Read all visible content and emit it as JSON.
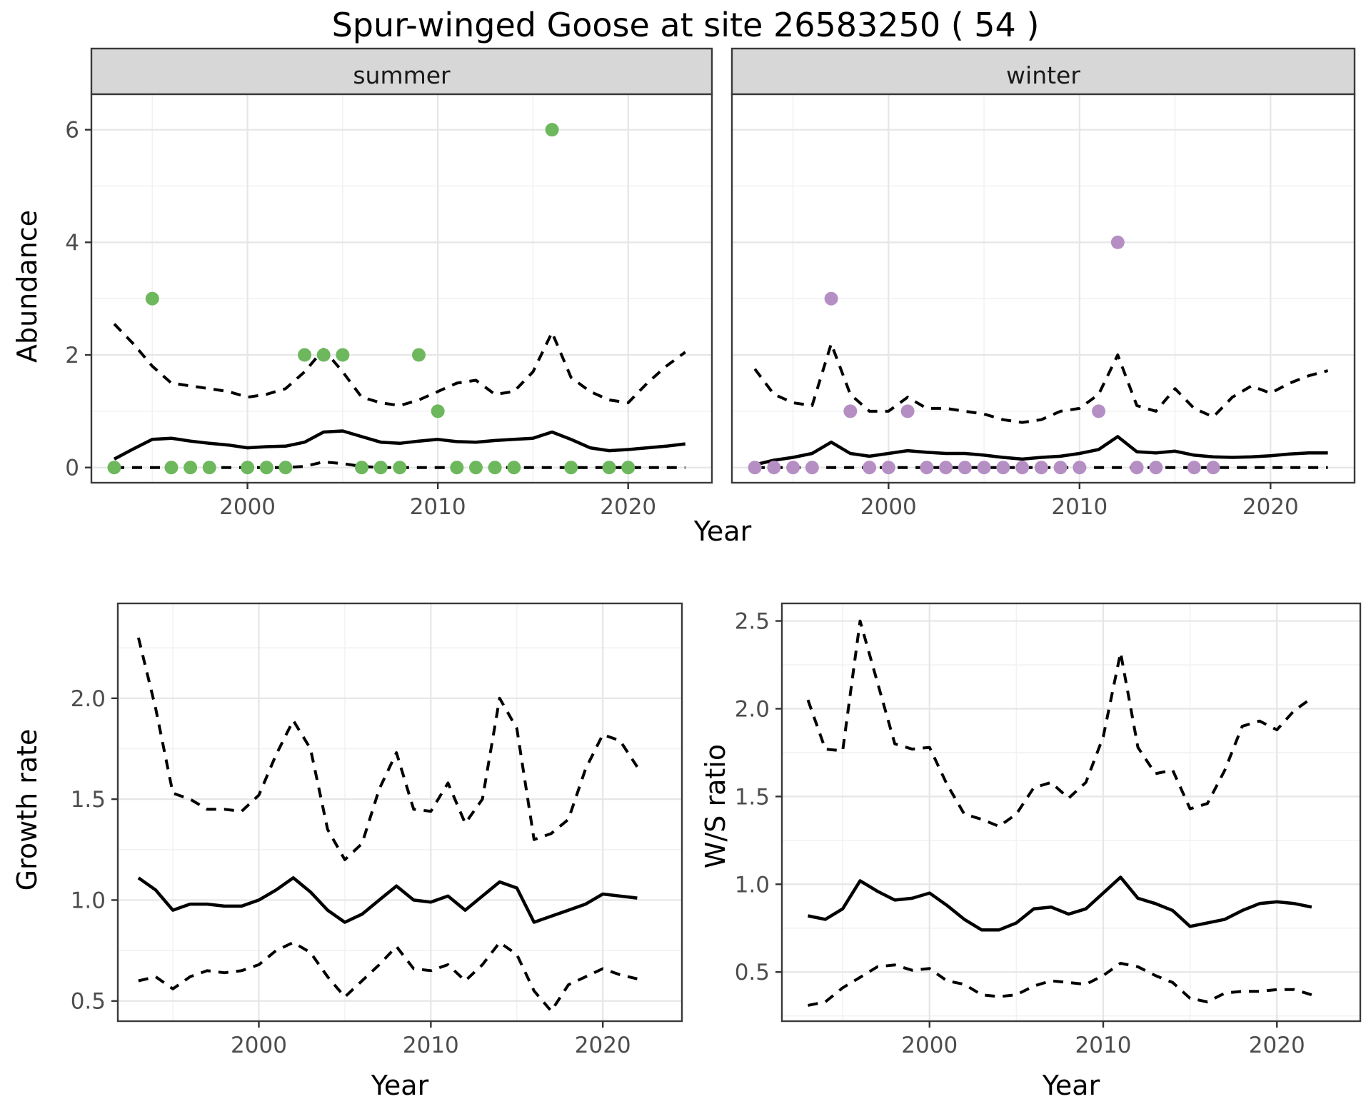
{
  "title": "Spur-winged Goose at site 26583250 ( 54 )",
  "colors": {
    "summer_point": "#6db75c",
    "winter_point": "#b58fc4",
    "line": "#000000",
    "grid_major": "#e6e6e6",
    "grid_minor": "#f2f2f2",
    "strip_bg": "#d7d7d7",
    "border": "#3a3a3a",
    "tick_text": "#4d4d4d"
  },
  "chart_data": {
    "abundance": {
      "type": "scatter+line",
      "ylabel": "Abundance",
      "xlabel": "Year",
      "ylim": [
        -0.27,
        6.63
      ],
      "xlim": [
        1991.8,
        2024.4
      ],
      "ytick_values": [
        0,
        2,
        4,
        6
      ],
      "ytick_labels": [
        "0",
        "2",
        "4",
        "6"
      ],
      "yminor_values": [
        1,
        3,
        5
      ],
      "xtick_values": [
        2000,
        2010,
        2020
      ],
      "xtick_labels": [
        "2000",
        "2010",
        "2020"
      ],
      "xminor_values": [
        1995,
        2005,
        2015
      ],
      "years": [
        1993,
        1994,
        1995,
        1996,
        1997,
        1998,
        1999,
        2000,
        2001,
        2002,
        2003,
        2004,
        2005,
        2006,
        2007,
        2008,
        2009,
        2010,
        2011,
        2012,
        2013,
        2014,
        2015,
        2016,
        2017,
        2018,
        2019,
        2020,
        2021,
        2022,
        2023
      ],
      "facets": [
        {
          "label": "summer",
          "point_color": "summer_point",
          "points": [
            [
              1993,
              0
            ],
            [
              1995,
              3
            ],
            [
              1996,
              0
            ],
            [
              1997,
              0
            ],
            [
              1998,
              0
            ],
            [
              2000,
              0
            ],
            [
              2001,
              0
            ],
            [
              2002,
              0
            ],
            [
              2003,
              2
            ],
            [
              2004,
              2
            ],
            [
              2005,
              2
            ],
            [
              2006,
              0
            ],
            [
              2007,
              0
            ],
            [
              2008,
              0
            ],
            [
              2009,
              2
            ],
            [
              2010,
              1
            ],
            [
              2011,
              0
            ],
            [
              2012,
              0
            ],
            [
              2013,
              0
            ],
            [
              2014,
              0
            ],
            [
              2016,
              6
            ],
            [
              2017,
              0
            ],
            [
              2019,
              0
            ],
            [
              2020,
              0
            ]
          ],
          "fit": [
            0.15,
            0.33,
            0.5,
            0.52,
            0.47,
            0.43,
            0.4,
            0.35,
            0.37,
            0.38,
            0.45,
            0.63,
            0.65,
            0.55,
            0.45,
            0.43,
            0.47,
            0.5,
            0.46,
            0.45,
            0.48,
            0.5,
            0.52,
            0.63,
            0.5,
            0.35,
            0.3,
            0.32,
            0.35,
            0.38,
            0.42
          ],
          "upper": [
            2.55,
            2.2,
            1.8,
            1.5,
            1.45,
            1.4,
            1.35,
            1.25,
            1.3,
            1.4,
            1.7,
            2.1,
            1.7,
            1.25,
            1.15,
            1.1,
            1.2,
            1.35,
            1.5,
            1.55,
            1.3,
            1.35,
            1.7,
            2.4,
            1.6,
            1.35,
            1.2,
            1.15,
            1.5,
            1.8,
            2.05
          ],
          "lower": [
            0,
            0,
            0,
            0,
            0,
            0,
            0,
            0,
            0,
            0,
            0.02,
            0.1,
            0.07,
            0.02,
            0,
            0,
            0,
            0,
            0,
            0,
            0,
            0,
            0,
            0,
            0,
            0,
            0,
            0,
            0,
            0,
            0
          ]
        },
        {
          "label": "winter",
          "point_color": "winter_point",
          "points": [
            [
              1993,
              0
            ],
            [
              1994,
              0
            ],
            [
              1995,
              0
            ],
            [
              1996,
              0
            ],
            [
              1997,
              3
            ],
            [
              1998,
              1
            ],
            [
              1999,
              0
            ],
            [
              2000,
              0
            ],
            [
              2001,
              1
            ],
            [
              2002,
              0
            ],
            [
              2003,
              0
            ],
            [
              2004,
              0
            ],
            [
              2005,
              0
            ],
            [
              2006,
              0
            ],
            [
              2007,
              0
            ],
            [
              2008,
              0
            ],
            [
              2009,
              0
            ],
            [
              2010,
              0
            ],
            [
              2011,
              1
            ],
            [
              2012,
              4
            ],
            [
              2013,
              0
            ],
            [
              2014,
              0
            ],
            [
              2016,
              0
            ],
            [
              2017,
              0
            ]
          ],
          "fit": [
            0.05,
            0.13,
            0.18,
            0.25,
            0.45,
            0.25,
            0.2,
            0.25,
            0.3,
            0.27,
            0.25,
            0.25,
            0.22,
            0.18,
            0.15,
            0.18,
            0.2,
            0.25,
            0.32,
            0.55,
            0.28,
            0.26,
            0.29,
            0.22,
            0.19,
            0.18,
            0.19,
            0.21,
            0.24,
            0.26,
            0.26
          ],
          "upper": [
            1.75,
            1.3,
            1.15,
            1.1,
            2.2,
            1.3,
            1.0,
            1.0,
            1.25,
            1.05,
            1.05,
            1.0,
            0.95,
            0.85,
            0.8,
            0.85,
            1.0,
            1.05,
            1.3,
            2.0,
            1.1,
            1.0,
            1.4,
            1.05,
            0.9,
            1.25,
            1.45,
            1.32,
            1.5,
            1.63,
            1.72
          ],
          "lower": [
            0,
            0,
            0,
            0,
            0,
            0,
            0,
            0,
            0,
            0,
            0,
            0,
            0,
            0,
            0,
            0,
            0,
            0,
            0,
            0,
            0,
            0,
            0,
            0,
            0,
            0,
            0,
            0,
            0,
            0,
            0
          ]
        }
      ]
    },
    "growth": {
      "type": "line",
      "ylabel": "Growth rate",
      "xlabel": "Year",
      "ylim": [
        0.4,
        2.47
      ],
      "xlim": [
        1991.8,
        2024.6
      ],
      "ytick_values": [
        0.5,
        1.0,
        1.5,
        2.0
      ],
      "ytick_labels": [
        "0.5",
        "1.0",
        "1.5",
        "2.0"
      ],
      "yminor_values": [
        0.75,
        1.25,
        1.75,
        2.25
      ],
      "xtick_values": [
        2000,
        2010,
        2020
      ],
      "xtick_labels": [
        "2000",
        "2010",
        "2020"
      ],
      "xminor_values": [
        1995,
        2005,
        2015
      ],
      "years": [
        1993,
        1994,
        1995,
        1996,
        1997,
        1998,
        1999,
        2000,
        2001,
        2002,
        2003,
        2004,
        2005,
        2006,
        2007,
        2008,
        2009,
        2010,
        2011,
        2012,
        2013,
        2014,
        2015,
        2016,
        2017,
        2018,
        2019,
        2020,
        2021,
        2022
      ],
      "fit": [
        1.11,
        1.05,
        0.95,
        0.98,
        0.98,
        0.97,
        0.97,
        1.0,
        1.05,
        1.11,
        1.04,
        0.95,
        0.89,
        0.93,
        1.0,
        1.07,
        1.0,
        0.99,
        1.02,
        0.95,
        1.02,
        1.09,
        1.06,
        0.89,
        0.92,
        0.95,
        0.98,
        1.03,
        1.02,
        1.01
      ],
      "upper": [
        2.3,
        1.95,
        1.53,
        1.5,
        1.45,
        1.45,
        1.44,
        1.52,
        1.72,
        1.89,
        1.75,
        1.35,
        1.2,
        1.28,
        1.55,
        1.73,
        1.45,
        1.44,
        1.58,
        1.38,
        1.5,
        2.0,
        1.85,
        1.3,
        1.33,
        1.4,
        1.65,
        1.82,
        1.79,
        1.66
      ],
      "lower": [
        0.6,
        0.62,
        0.56,
        0.62,
        0.65,
        0.64,
        0.65,
        0.68,
        0.75,
        0.79,
        0.74,
        0.62,
        0.52,
        0.6,
        0.68,
        0.77,
        0.66,
        0.65,
        0.68,
        0.6,
        0.68,
        0.79,
        0.73,
        0.55,
        0.45,
        0.58,
        0.62,
        0.66,
        0.63,
        0.61
      ]
    },
    "ratio": {
      "type": "line",
      "ylabel": "W/S ratio",
      "xlabel": "Year",
      "ylim": [
        0.22,
        2.6
      ],
      "xlim": [
        1991.5,
        2024.8
      ],
      "ytick_values": [
        0.5,
        1.0,
        1.5,
        2.0,
        2.5
      ],
      "ytick_labels": [
        "0.5",
        "1.0",
        "1.5",
        "2.0",
        "2.5"
      ],
      "yminor_values": [
        0.25,
        0.75,
        1.25,
        1.75,
        2.25
      ],
      "xtick_values": [
        2000,
        2010,
        2020
      ],
      "xtick_labels": [
        "2000",
        "2010",
        "2020"
      ],
      "xminor_values": [
        1995,
        2005,
        2015
      ],
      "years": [
        1993,
        1994,
        1995,
        1996,
        1997,
        1998,
        1999,
        2000,
        2001,
        2002,
        2003,
        2004,
        2005,
        2006,
        2007,
        2008,
        2009,
        2010,
        2011,
        2012,
        2013,
        2014,
        2015,
        2016,
        2017,
        2018,
        2019,
        2020,
        2021,
        2022
      ],
      "fit": [
        0.82,
        0.8,
        0.86,
        1.02,
        0.96,
        0.91,
        0.92,
        0.95,
        0.88,
        0.8,
        0.74,
        0.74,
        0.78,
        0.86,
        0.87,
        0.83,
        0.86,
        0.95,
        1.04,
        0.92,
        0.89,
        0.85,
        0.76,
        0.78,
        0.8,
        0.85,
        0.89,
        0.9,
        0.89,
        0.87
      ],
      "upper": [
        2.05,
        1.77,
        1.76,
        2.5,
        2.15,
        1.8,
        1.77,
        1.78,
        1.57,
        1.4,
        1.37,
        1.33,
        1.4,
        1.55,
        1.58,
        1.49,
        1.58,
        1.84,
        2.32,
        1.78,
        1.63,
        1.65,
        1.43,
        1.46,
        1.65,
        1.9,
        1.93,
        1.88,
        1.99,
        2.06
      ],
      "lower": [
        0.31,
        0.33,
        0.41,
        0.47,
        0.53,
        0.54,
        0.51,
        0.52,
        0.45,
        0.43,
        0.37,
        0.36,
        0.37,
        0.42,
        0.45,
        0.44,
        0.43,
        0.48,
        0.55,
        0.53,
        0.48,
        0.44,
        0.35,
        0.33,
        0.38,
        0.39,
        0.39,
        0.4,
        0.4,
        0.37
      ]
    }
  }
}
